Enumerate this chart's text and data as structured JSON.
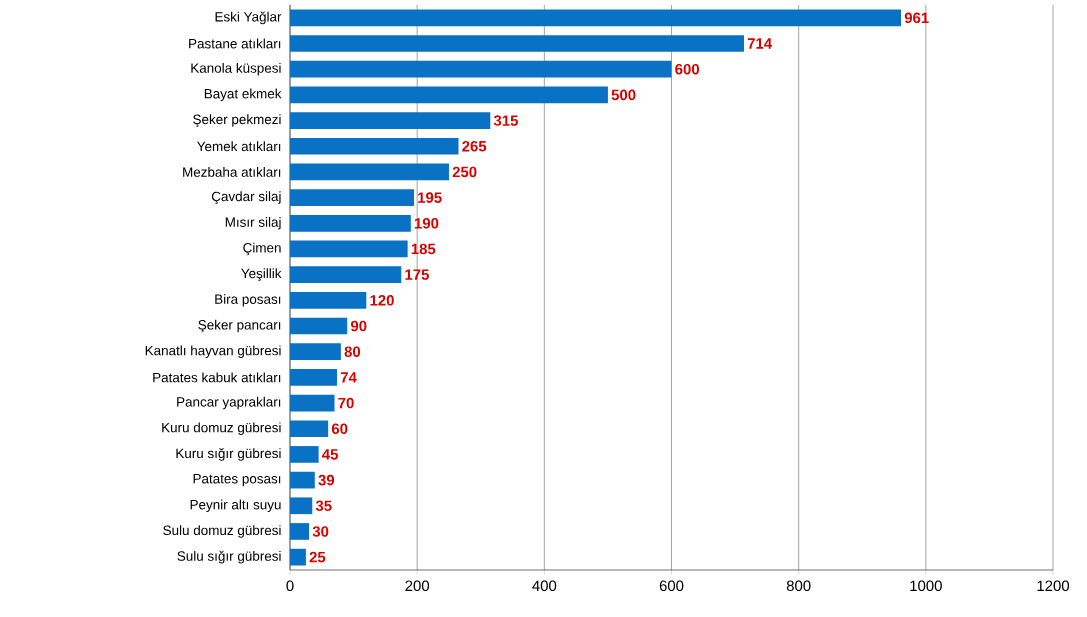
{
  "chart_data": {
    "type": "bar",
    "orientation": "horizontal",
    "categories": [
      "Eski Yağlar",
      "Pastane atıkları",
      "Kanola küspesi",
      "Bayat ekmek",
      "Şeker pekmezi",
      "Yemek atıkları",
      "Mezbaha atıkları",
      "Çavdar silaj",
      "Mısır silaj",
      "Çimen",
      "Yeşillik",
      "Bira posası",
      "Şeker pancarı",
      "Kanatlı hayvan gübresi",
      "Patates kabuk atıkları",
      "Pancar yaprakları",
      "Kuru domuz gübresi",
      "Kuru sığır gübresi",
      "Patates posası",
      "Peynir altı suyu",
      "Sulu domuz gübresi",
      "Sulu sığır gübresi"
    ],
    "values": [
      961,
      714,
      600,
      500,
      315,
      265,
      250,
      195,
      190,
      185,
      175,
      120,
      90,
      80,
      74,
      70,
      60,
      45,
      39,
      35,
      30,
      25
    ],
    "color": "#0a72c4",
    "data_labels": true,
    "grid": "x",
    "xlim": [
      0,
      1200
    ],
    "xticks": [
      0,
      200,
      400,
      600,
      800,
      1000,
      1200
    ]
  }
}
